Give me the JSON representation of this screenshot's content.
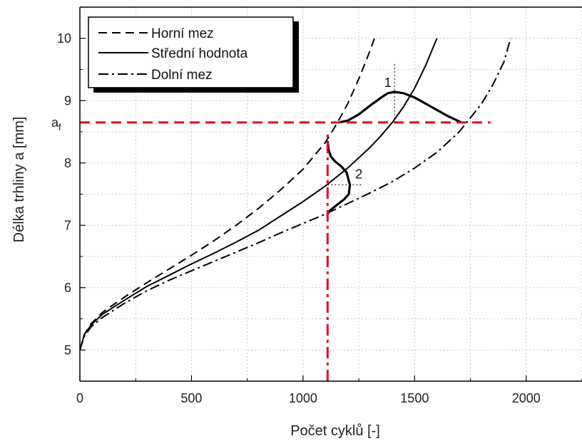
{
  "chart_data": {
    "type": "line",
    "xlabel": "Počet cyklů [-]",
    "ylabel": "Délka trhliny  a [mm]",
    "xlim": [
      0,
      2250
    ],
    "ylim": [
      4.5,
      10.5
    ],
    "xticks": [
      0,
      500,
      1000,
      1500,
      2000
    ],
    "yticks": [
      5,
      6,
      7,
      8,
      9,
      10
    ],
    "grid": true,
    "legend_position": "top-left",
    "series": [
      {
        "name": "Horní mez",
        "style": "dashed",
        "color": "#000000",
        "x": [
          0,
          20,
          50,
          100,
          200,
          300,
          400,
          500,
          600,
          700,
          800,
          900,
          1000,
          1100,
          1150,
          1200,
          1250,
          1300,
          1320
        ],
        "y": [
          5.0,
          5.25,
          5.42,
          5.6,
          5.85,
          6.08,
          6.3,
          6.52,
          6.75,
          7.0,
          7.27,
          7.57,
          7.9,
          8.33,
          8.62,
          8.95,
          9.35,
          9.8,
          10.0
        ]
      },
      {
        "name": "Střední hodnota",
        "style": "solid",
        "color": "#000000",
        "x": [
          0,
          20,
          50,
          100,
          200,
          300,
          400,
          500,
          600,
          700,
          800,
          900,
          1000,
          1100,
          1200,
          1300,
          1350,
          1400,
          1450,
          1500,
          1550,
          1600
        ],
        "y": [
          5.0,
          5.25,
          5.4,
          5.57,
          5.8,
          6.02,
          6.2,
          6.38,
          6.55,
          6.73,
          6.92,
          7.15,
          7.38,
          7.63,
          7.92,
          8.25,
          8.44,
          8.65,
          8.9,
          9.2,
          9.57,
          10.0
        ]
      },
      {
        "name": "Dolní mez",
        "style": "dashdot",
        "color": "#000000",
        "x": [
          0,
          20,
          50,
          100,
          200,
          300,
          400,
          500,
          600,
          700,
          800,
          900,
          1000,
          1100,
          1200,
          1300,
          1400,
          1500,
          1600,
          1700,
          1800,
          1850,
          1900,
          1930
        ],
        "y": [
          5.0,
          5.22,
          5.37,
          5.52,
          5.75,
          5.95,
          6.12,
          6.27,
          6.42,
          6.57,
          6.72,
          6.88,
          7.03,
          7.18,
          7.35,
          7.52,
          7.7,
          7.92,
          8.17,
          8.5,
          8.95,
          9.25,
          9.62,
          10.0
        ]
      },
      {
        "style": "bold",
        "color": "#000000",
        "x": [
          1160,
          1200,
          1250,
          1300,
          1350,
          1380,
          1410,
          1450,
          1500,
          1550,
          1600,
          1650,
          1710
        ],
        "y": [
          8.65,
          8.68,
          8.78,
          8.92,
          9.05,
          9.12,
          9.14,
          9.12,
          9.05,
          8.95,
          8.85,
          8.75,
          8.65
        ]
      },
      {
        "style": "bold",
        "color": "#000000",
        "x": [
          1110,
          1115,
          1125,
          1145,
          1170,
          1195,
          1210,
          1205,
          1185,
          1160,
          1135,
          1115,
          1110
        ],
        "y": [
          8.35,
          8.2,
          8.1,
          8.02,
          7.95,
          7.85,
          7.65,
          7.5,
          7.42,
          7.35,
          7.28,
          7.22,
          7.18
        ]
      }
    ],
    "reference_lines": [
      {
        "orientation": "horizontal",
        "value": 8.65,
        "x_range": [
          0,
          1840
        ],
        "style": "dashed",
        "color": "#e8001c"
      },
      {
        "orientation": "vertical",
        "value": 1110,
        "y_range": [
          4.5,
          8.5
        ],
        "style": "dashdot",
        "color": "#e8001c"
      }
    ],
    "guide_lines": [
      {
        "orientation": "vertical",
        "value": 1410,
        "y_range": [
          8.65,
          9.6
        ],
        "style": "dotted",
        "color": "#000000"
      },
      {
        "orientation": "horizontal",
        "value": 7.65,
        "x_range": [
          1110,
          1260
        ],
        "style": "dotted",
        "color": "#000000"
      }
    ],
    "annotations": [
      {
        "text": "1",
        "x": 1380,
        "y": 9.22
      },
      {
        "text": "2",
        "x": 1250,
        "y": 7.75
      }
    ],
    "ylabel_extra": {
      "text": "a",
      "sub": "f",
      "value": 8.65
    }
  }
}
